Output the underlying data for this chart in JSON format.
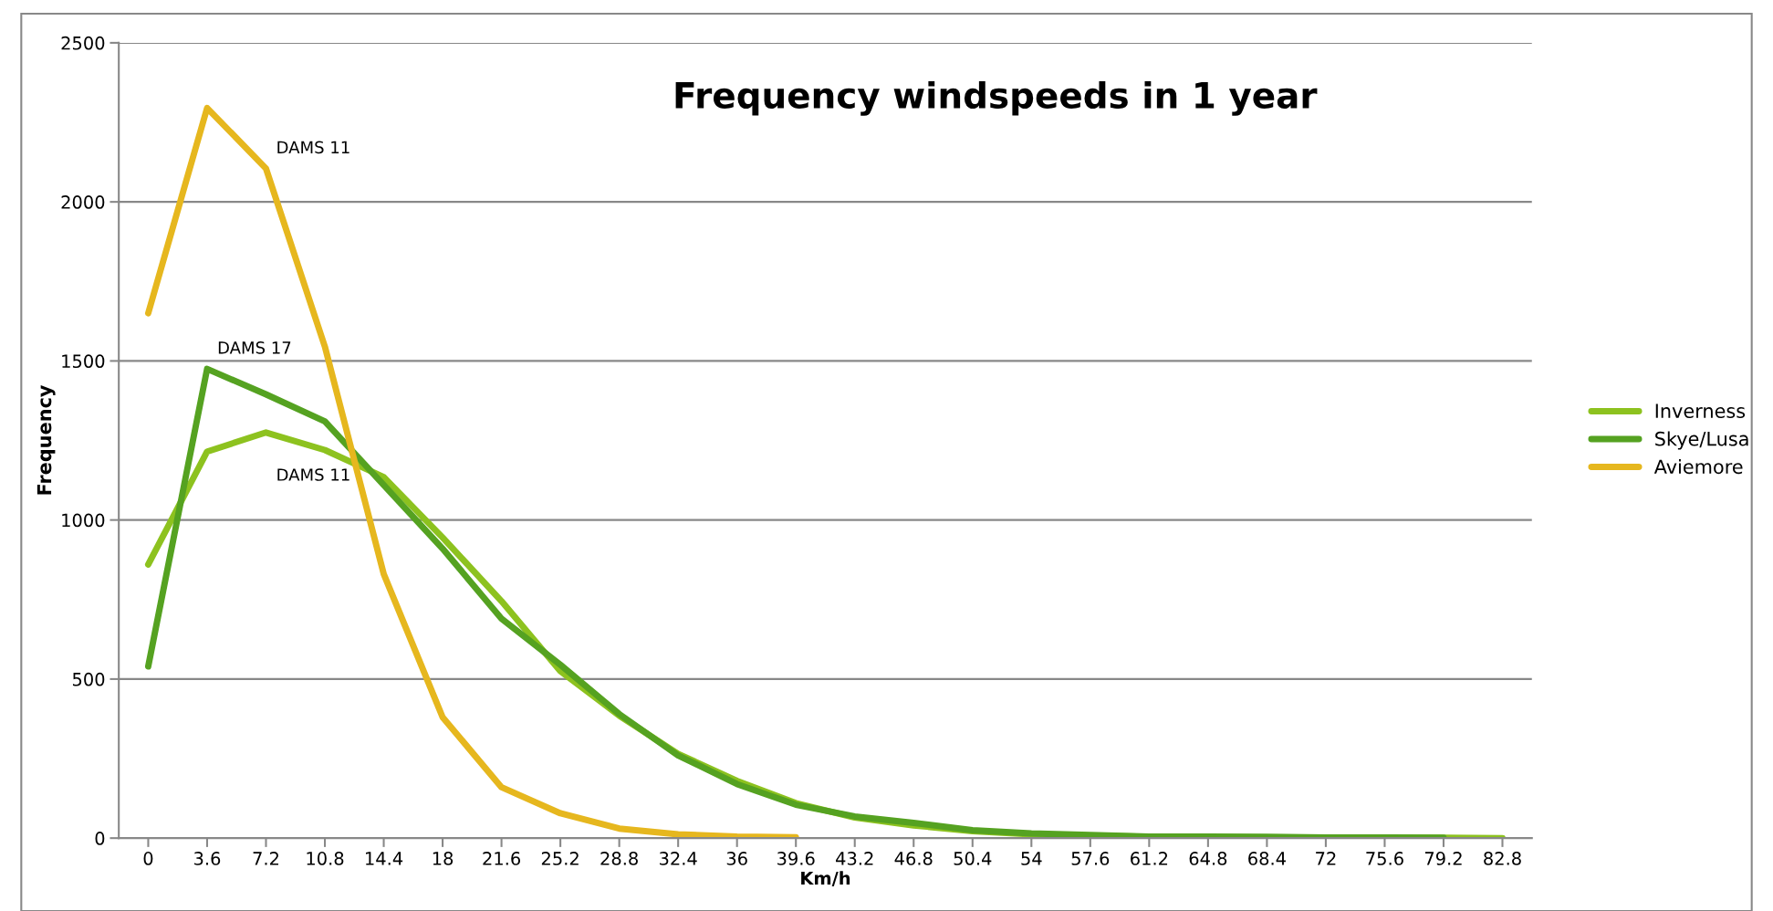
{
  "chart_data": {
    "type": "line",
    "title": "Frequency windspeeds in 1 year",
    "xlabel": "Km/h",
    "ylabel": "Frequency",
    "categories": [
      "0",
      "3.6",
      "7.2",
      "10.8",
      "14.4",
      "18",
      "21.6",
      "25.2",
      "28.8",
      "32.4",
      "36",
      "39.6",
      "43.2",
      "46.8",
      "50.4",
      "54",
      "57.6",
      "61.2",
      "64.8",
      "68.4",
      "72",
      "75.6",
      "79.2",
      "82.8"
    ],
    "series": [
      {
        "name": "Inverness",
        "color": "#8dc21f",
        "values": [
          860,
          1215,
          1275,
          1220,
          1135,
          945,
          745,
          525,
          385,
          265,
          180,
          110,
          65,
          40,
          22,
          12,
          8,
          4,
          3,
          2,
          1,
          1,
          1,
          0
        ]
      },
      {
        "name": "Skye/Lusa",
        "color": "#55a221",
        "values": [
          540,
          1475,
          1395,
          1310,
          1110,
          910,
          690,
          545,
          390,
          260,
          170,
          105,
          68,
          48,
          25,
          15,
          10,
          5,
          5,
          4,
          2,
          2,
          1,
          null
        ]
      },
      {
        "name": "Aviemore",
        "color": "#e6b71e",
        "values": [
          1650,
          2295,
          2105,
          1545,
          830,
          380,
          160,
          78,
          30,
          12,
          5,
          3,
          null,
          null,
          null,
          null,
          null,
          null,
          null,
          null,
          null,
          null,
          null,
          null
        ]
      }
    ],
    "annotations": [
      {
        "text": "DAMS 11",
        "x": "7.2",
        "y": 2105
      },
      {
        "text": "DAMS 17",
        "x": "3.6",
        "y": 1475
      },
      {
        "text": "DAMS 11",
        "x": "7.2",
        "y": 1275
      }
    ],
    "ylim": [
      0,
      2500
    ],
    "yticks": [
      0,
      500,
      1000,
      1500,
      2000,
      2500
    ],
    "grid": "y",
    "legend": "right",
    "marker": "none",
    "line_style": "solid"
  }
}
